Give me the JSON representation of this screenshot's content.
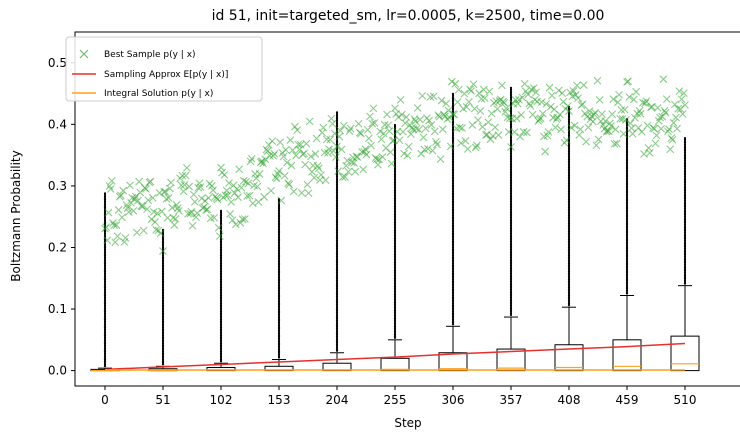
{
  "chart_data": {
    "type": "box",
    "title": "id 51, init=targeted_sm, lr=0.0005, k=2500, time=0.00",
    "xlabel": "Step",
    "ylabel": "Boltzmann Probability",
    "categories": [
      "0",
      "51",
      "102",
      "153",
      "204",
      "255",
      "306",
      "357",
      "408",
      "459",
      "510"
    ],
    "ylim": [
      -0.025,
      0.55
    ],
    "yticks": [
      "0.0",
      "0.1",
      "0.2",
      "0.3",
      "0.4",
      "0.5"
    ],
    "ytick_values": [
      0.0,
      0.1,
      0.2,
      0.3,
      0.4,
      0.5
    ],
    "grid": false,
    "legend_position": "top-left",
    "boxplots": [
      {
        "step": 0,
        "q1": 0.0,
        "median": 0.0,
        "q3": 0.002,
        "whisker_high": 0.004,
        "flier_max": 0.29
      },
      {
        "step": 51,
        "q1": 0.0,
        "median": 0.0,
        "q3": 0.003,
        "whisker_high": 0.007,
        "flier_max": 0.23
      },
      {
        "step": 102,
        "q1": 0.0,
        "median": 0.001,
        "q3": 0.005,
        "whisker_high": 0.012,
        "flier_max": 0.26
      },
      {
        "step": 153,
        "q1": 0.0,
        "median": 0.001,
        "q3": 0.007,
        "whisker_high": 0.018,
        "flier_max": 0.28
      },
      {
        "step": 204,
        "q1": 0.0,
        "median": 0.001,
        "q3": 0.012,
        "whisker_high": 0.029,
        "flier_max": 0.42
      },
      {
        "step": 255,
        "q1": 0.0,
        "median": 0.002,
        "q3": 0.02,
        "whisker_high": 0.05,
        "flier_max": 0.4
      },
      {
        "step": 306,
        "q1": 0.0,
        "median": 0.003,
        "q3": 0.029,
        "whisker_high": 0.072,
        "flier_max": 0.45
      },
      {
        "step": 357,
        "q1": 0.0,
        "median": 0.004,
        "q3": 0.035,
        "whisker_high": 0.087,
        "flier_max": 0.46
      },
      {
        "step": 408,
        "q1": 0.0,
        "median": 0.005,
        "q3": 0.042,
        "whisker_high": 0.103,
        "flier_max": 0.43
      },
      {
        "step": 459,
        "q1": 0.0,
        "median": 0.007,
        "q3": 0.05,
        "whisker_high": 0.122,
        "flier_max": 0.41
      },
      {
        "step": 510,
        "q1": 0.0,
        "median": 0.011,
        "q3": 0.056,
        "whisker_high": 0.138,
        "flier_max": 0.38
      }
    ],
    "series": [
      {
        "name": "Best Sample $p(y\\mid x)$",
        "legend_text": "Best Sample p(y | x)",
        "type": "scatter",
        "marker": "x",
        "color": "#2ca02c",
        "x": [
          0,
          20,
          40,
          51,
          70,
          90,
          102,
          120,
          140,
          153,
          170,
          190,
          204,
          220,
          240,
          255,
          270,
          290,
          306,
          320,
          340,
          357,
          375,
          390,
          408,
          425,
          440,
          459,
          475,
          490,
          510
        ],
        "y": [
          0.26,
          0.24,
          0.28,
          0.24,
          0.3,
          0.27,
          0.28,
          0.3,
          0.31,
          0.33,
          0.34,
          0.35,
          0.36,
          0.37,
          0.38,
          0.39,
          0.4,
          0.4,
          0.41,
          0.41,
          0.42,
          0.41,
          0.42,
          0.41,
          0.41,
          0.42,
          0.41,
          0.42,
          0.41,
          0.42,
          0.41
        ]
      },
      {
        "name": "Sampling Approx $E[p(y\\mid x)]$",
        "legend_text": "Sampling Approx E[p(y | x)]",
        "type": "line",
        "color": "#e8312d",
        "x": [
          0,
          51,
          102,
          153,
          204,
          255,
          306,
          357,
          408,
          459,
          510
        ],
        "y": [
          0.002,
          0.006,
          0.01,
          0.014,
          0.018,
          0.022,
          0.027,
          0.031,
          0.035,
          0.039,
          0.044
        ]
      },
      {
        "name": "Integral Solution $p(y\\mid x)$",
        "legend_text": "Integral Solution p(y | x)",
        "type": "line",
        "color": "#ff9f1c",
        "x": [
          0,
          51,
          102,
          153,
          204,
          255,
          306,
          357,
          408,
          459,
          510
        ],
        "y": [
          0.001,
          0.001,
          0.001,
          0.001,
          0.001,
          0.001,
          0.001,
          0.001,
          0.001,
          0.001,
          0.001
        ]
      }
    ]
  }
}
